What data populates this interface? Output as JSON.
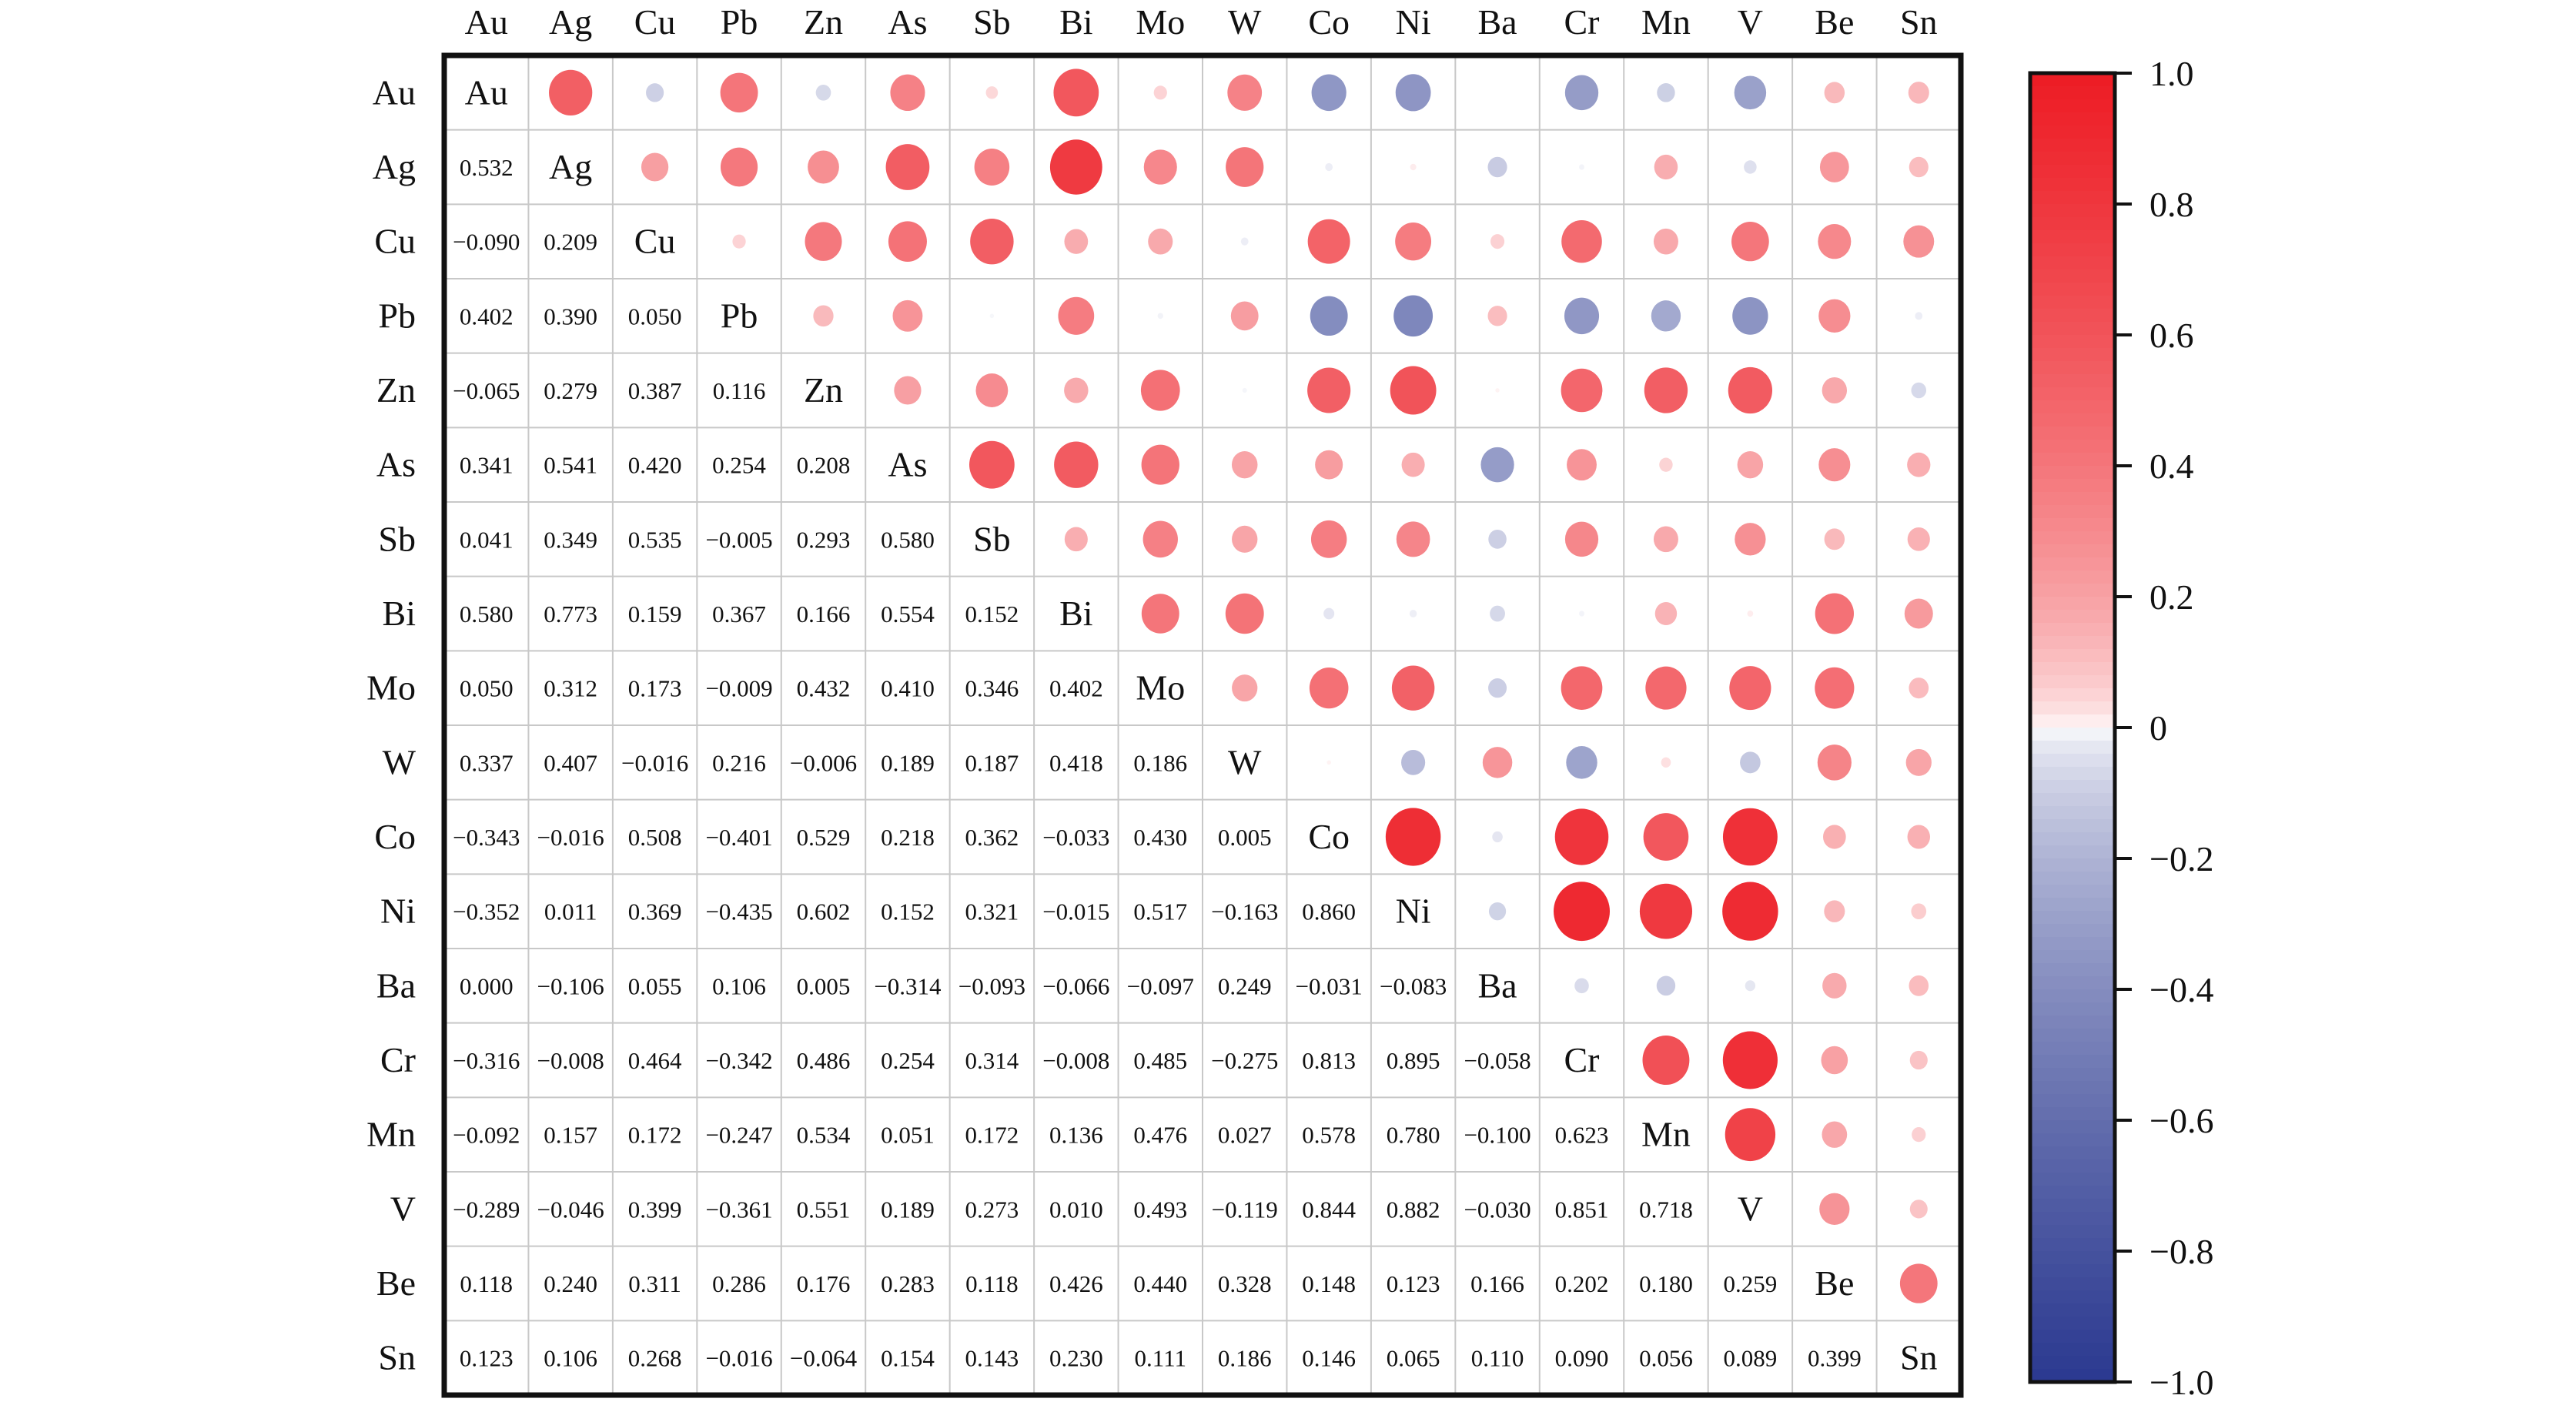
{
  "chart_data": {
    "type": "heatmap",
    "subtype": "correlation-matrix (lower: values, upper: circles, diagonal: labels)",
    "variables": [
      "Au",
      "Ag",
      "Cu",
      "Pb",
      "Zn",
      "As",
      "Sb",
      "Bi",
      "Mo",
      "W",
      "Co",
      "Ni",
      "Ba",
      "Cr",
      "Mn",
      "V",
      "Be",
      "Sn"
    ],
    "lower_triangle": [
      [],
      [
        0.532
      ],
      [
        -0.09,
        0.209
      ],
      [
        0.402,
        0.39,
        0.05
      ],
      [
        -0.065,
        0.279,
        0.387,
        0.116
      ],
      [
        0.341,
        0.541,
        0.42,
        0.254,
        0.208
      ],
      [
        0.041,
        0.349,
        0.535,
        -0.005,
        0.293,
        0.58
      ],
      [
        0.58,
        0.773,
        0.159,
        0.367,
        0.166,
        0.554,
        0.152
      ],
      [
        0.05,
        0.312,
        0.173,
        -0.009,
        0.432,
        0.41,
        0.346,
        0.402
      ],
      [
        0.337,
        0.407,
        -0.016,
        0.216,
        -0.006,
        0.189,
        0.187,
        0.418,
        0.186
      ],
      [
        -0.343,
        -0.016,
        0.508,
        -0.401,
        0.529,
        0.218,
        0.362,
        -0.033,
        0.43,
        0.005
      ],
      [
        -0.352,
        0.011,
        0.369,
        -0.435,
        0.602,
        0.152,
        0.321,
        -0.015,
        0.517,
        -0.163,
        0.86
      ],
      [
        0.0,
        -0.106,
        0.055,
        0.106,
        0.005,
        -0.314,
        -0.093,
        -0.066,
        -0.097,
        0.249,
        -0.031,
        -0.083
      ],
      [
        -0.316,
        -0.008,
        0.464,
        -0.342,
        0.486,
        0.254,
        0.314,
        -0.008,
        0.485,
        -0.275,
        0.813,
        0.895,
        -0.058
      ],
      [
        -0.092,
        0.157,
        0.172,
        -0.247,
        0.534,
        0.051,
        0.172,
        0.136,
        0.476,
        0.027,
        0.578,
        0.78,
        -0.1,
        0.623
      ],
      [
        -0.289,
        -0.046,
        0.399,
        -0.361,
        0.551,
        0.189,
        0.273,
        0.01,
        0.493,
        -0.119,
        0.844,
        0.882,
        -0.03,
        0.851,
        0.718
      ],
      [
        0.118,
        0.24,
        0.311,
        0.286,
        0.176,
        0.283,
        0.118,
        0.426,
        0.44,
        0.328,
        0.148,
        0.123,
        0.166,
        0.202,
        0.18,
        0.259
      ],
      [
        0.123,
        0.106,
        0.268,
        -0.016,
        -0.064,
        0.154,
        0.143,
        0.23,
        0.111,
        0.186,
        0.146,
        0.065,
        0.11,
        0.09,
        0.056,
        0.089,
        0.399
      ]
    ],
    "colorbar": {
      "range": [
        -1.0,
        1.0
      ],
      "ticks": [
        "1.0",
        "0.8",
        "0.6",
        "0.4",
        "0.2",
        "0",
        "−0.2",
        "−0.4",
        "−0.6",
        "−0.8",
        "−1.0"
      ],
      "tick_values": [
        1.0,
        0.8,
        0.6,
        0.4,
        0.2,
        0,
        -0.2,
        -0.4,
        -0.6,
        -0.8,
        -1.0
      ],
      "colors": {
        "negative": "#2b3990",
        "zero": "#ffffff",
        "positive": "#ed1c24"
      },
      "placement": "right"
    },
    "grid": true
  }
}
